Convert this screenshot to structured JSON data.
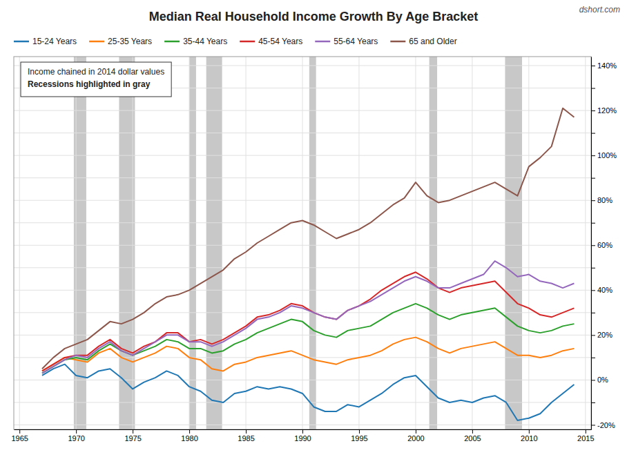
{
  "chart_data": {
    "type": "line",
    "title": "Median Real Household Income Growth By Age Bracket",
    "annotations": [
      "dshort.com",
      "Income chained in 2014 dollar values",
      "Recessions highlighted in gray"
    ],
    "x": [
      1967,
      1968,
      1969,
      1970,
      1971,
      1972,
      1973,
      1974,
      1975,
      1976,
      1977,
      1978,
      1979,
      1980,
      1981,
      1982,
      1983,
      1984,
      1985,
      1986,
      1987,
      1988,
      1989,
      1990,
      1991,
      1992,
      1993,
      1994,
      1995,
      1996,
      1997,
      1998,
      1999,
      2000,
      2001,
      2002,
      2003,
      2004,
      2005,
      2006,
      2007,
      2008,
      2009,
      2010,
      2011,
      2012,
      2013,
      2014
    ],
    "series": [
      {
        "name": "15-24 Years",
        "values": [
          0.02,
          0.05,
          0.07,
          0.02,
          0.01,
          0.04,
          0.05,
          0.01,
          -0.04,
          -0.01,
          0.01,
          0.04,
          0.02,
          -0.03,
          -0.05,
          -0.09,
          -0.1,
          -0.06,
          -0.05,
          -0.03,
          -0.04,
          -0.03,
          -0.04,
          -0.06,
          -0.12,
          -0.14,
          -0.14,
          -0.11,
          -0.12,
          -0.09,
          -0.06,
          -0.02,
          0.01,
          0.02,
          -0.03,
          -0.08,
          -0.1,
          -0.09,
          -0.1,
          -0.08,
          -0.07,
          -0.1,
          -0.18,
          -0.17,
          -0.15,
          -0.1,
          -0.06,
          -0.02
        ]
      },
      {
        "name": "25-35 Years",
        "values": [
          0.04,
          0.07,
          0.1,
          0.09,
          0.08,
          0.12,
          0.14,
          0.1,
          0.08,
          0.1,
          0.12,
          0.15,
          0.14,
          0.1,
          0.09,
          0.05,
          0.04,
          0.07,
          0.08,
          0.1,
          0.11,
          0.12,
          0.13,
          0.11,
          0.09,
          0.08,
          0.07,
          0.09,
          0.1,
          0.11,
          0.13,
          0.16,
          0.18,
          0.19,
          0.17,
          0.14,
          0.12,
          0.14,
          0.15,
          0.16,
          0.17,
          0.14,
          0.11,
          0.11,
          0.1,
          0.11,
          0.13,
          0.14
        ]
      },
      {
        "name": "35-44 Years",
        "values": [
          0.03,
          0.06,
          0.09,
          0.1,
          0.09,
          0.13,
          0.16,
          0.13,
          0.11,
          0.13,
          0.15,
          0.18,
          0.17,
          0.14,
          0.14,
          0.12,
          0.13,
          0.16,
          0.18,
          0.21,
          0.23,
          0.25,
          0.27,
          0.26,
          0.22,
          0.2,
          0.19,
          0.22,
          0.23,
          0.24,
          0.27,
          0.3,
          0.32,
          0.34,
          0.32,
          0.29,
          0.27,
          0.29,
          0.3,
          0.31,
          0.32,
          0.28,
          0.24,
          0.22,
          0.21,
          0.22,
          0.24,
          0.25
        ]
      },
      {
        "name": "45-54 Years",
        "values": [
          0.04,
          0.07,
          0.1,
          0.11,
          0.11,
          0.15,
          0.18,
          0.14,
          0.12,
          0.15,
          0.17,
          0.21,
          0.21,
          0.17,
          0.18,
          0.16,
          0.18,
          0.21,
          0.24,
          0.28,
          0.29,
          0.31,
          0.34,
          0.33,
          0.3,
          0.28,
          0.27,
          0.31,
          0.33,
          0.36,
          0.4,
          0.43,
          0.46,
          0.48,
          0.45,
          0.41,
          0.39,
          0.41,
          0.42,
          0.43,
          0.44,
          0.39,
          0.34,
          0.32,
          0.29,
          0.28,
          0.3,
          0.32
        ]
      },
      {
        "name": "55-64 Years",
        "values": [
          0.03,
          0.06,
          0.09,
          0.11,
          0.1,
          0.14,
          0.17,
          0.13,
          0.11,
          0.14,
          0.17,
          0.2,
          0.2,
          0.17,
          0.17,
          0.15,
          0.17,
          0.2,
          0.23,
          0.27,
          0.28,
          0.3,
          0.33,
          0.32,
          0.3,
          0.28,
          0.27,
          0.31,
          0.33,
          0.35,
          0.38,
          0.41,
          0.44,
          0.46,
          0.44,
          0.41,
          0.41,
          0.43,
          0.45,
          0.47,
          0.53,
          0.5,
          0.46,
          0.47,
          0.44,
          0.43,
          0.41,
          0.43
        ]
      },
      {
        "name": "65 and Older",
        "values": [
          0.05,
          0.1,
          0.14,
          0.16,
          0.18,
          0.22,
          0.26,
          0.25,
          0.27,
          0.3,
          0.34,
          0.37,
          0.38,
          0.4,
          0.43,
          0.46,
          0.49,
          0.54,
          0.57,
          0.61,
          0.64,
          0.67,
          0.7,
          0.71,
          0.69,
          0.66,
          0.63,
          0.65,
          0.67,
          0.7,
          0.74,
          0.78,
          0.81,
          0.88,
          0.82,
          0.79,
          0.8,
          0.82,
          0.84,
          0.86,
          0.88,
          0.85,
          0.82,
          0.95,
          0.99,
          1.04,
          1.21,
          1.17
        ]
      }
    ],
    "recession_bands": {
      "color": "#C8C8C8",
      "ranges": [
        [
          1969.8,
          1970.9
        ],
        [
          1973.8,
          1975.2
        ],
        [
          1980.0,
          1980.6
        ],
        [
          1981.5,
          1982.9
        ],
        [
          1990.6,
          1991.2
        ],
        [
          2001.2,
          2001.9
        ],
        [
          2007.9,
          2009.4
        ]
      ]
    },
    "xlim": [
      1964.5,
      2015.5
    ],
    "xticks": [
      1965,
      1970,
      1975,
      1980,
      1985,
      1990,
      1995,
      2000,
      2005,
      2010,
      2015
    ],
    "ylim": [
      -0.22,
      1.44
    ],
    "yticks": [
      {
        "value": -0.2,
        "label": "-20%"
      },
      {
        "value": -0.1,
        "label": null
      },
      {
        "value": 0.0,
        "label": "0%"
      },
      {
        "value": 0.1,
        "label": null
      },
      {
        "value": 0.2,
        "label": "20%"
      },
      {
        "value": 0.3,
        "label": null
      },
      {
        "value": 0.4,
        "label": "40%"
      },
      {
        "value": 0.5,
        "label": null
      },
      {
        "value": 0.6,
        "label": "60%"
      },
      {
        "value": 0.7,
        "label": null
      },
      {
        "value": 0.8,
        "label": "80%"
      },
      {
        "value": 0.9,
        "label": null
      },
      {
        "value": 1.0,
        "label": "100%"
      },
      {
        "value": 1.1,
        "label": null
      },
      {
        "value": 1.2,
        "label": "120%"
      },
      {
        "value": 1.3,
        "label": null
      },
      {
        "value": 1.4,
        "label": "140%"
      }
    ],
    "grid": true,
    "legend": "top"
  }
}
